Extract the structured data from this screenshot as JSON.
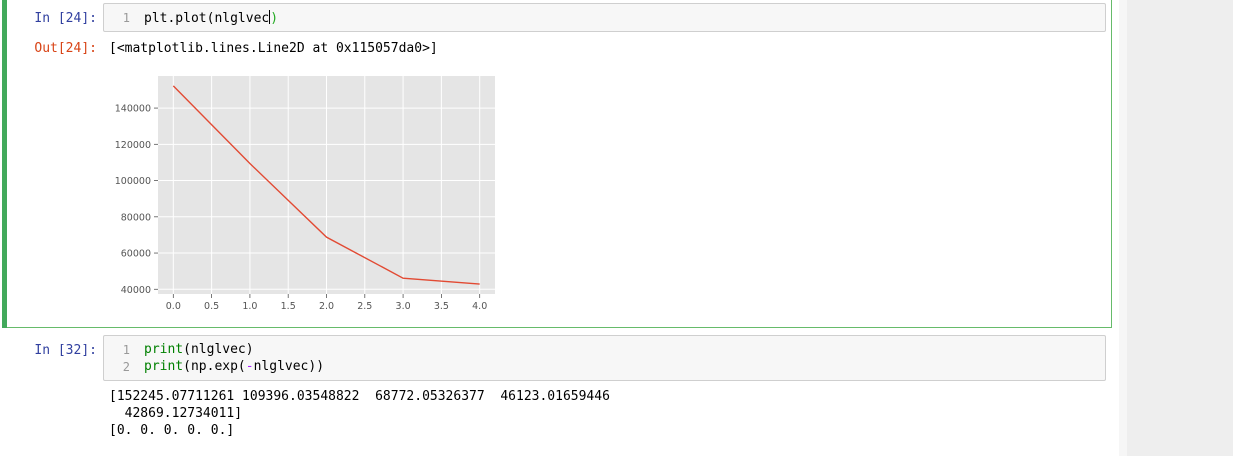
{
  "cells": [
    {
      "in_prompt": "In [24]:",
      "lines": [
        {
          "num": "1",
          "code": "plt.plot(nlglvec"
        }
      ],
      "out_prompt": "Out[24]:",
      "out_text": "[<matplotlib.lines.Line2D at 0x115057da0>]"
    },
    {
      "in_prompt": "In [32]:",
      "lines": [
        {
          "num": "1",
          "code_kw": "print",
          "code_rest": "(nlglvec)"
        },
        {
          "num": "2",
          "code_kw": "print",
          "code_rest": "(np.exp(",
          "code_op": "-",
          "code_tail": "nlglvec))"
        }
      ],
      "stdout": [
        "[152245.07711261 109396.03548822  68772.05326377  46123.01659446",
        "  42869.12734011]",
        "[0. 0. 0. 0. 0.]"
      ]
    }
  ],
  "chart_data": {
    "type": "line",
    "x": [
      0,
      1,
      2,
      3,
      4
    ],
    "series": [
      {
        "values": [
          152245.07711261,
          109396.03548822,
          68772.05326377,
          46123.01659446,
          42869.12734011
        ],
        "color": "#e24a33"
      }
    ],
    "xlim": [
      -0.2,
      4.2
    ],
    "ylim": [
      37400,
      157700
    ],
    "xticks": [
      "0.0",
      "0.5",
      "1.0",
      "1.5",
      "2.0",
      "2.5",
      "3.0",
      "3.5",
      "4.0"
    ],
    "yticks": [
      "40000",
      "60000",
      "80000",
      "100000",
      "120000",
      "140000"
    ],
    "title": "",
    "xlabel": "",
    "ylabel": "",
    "grid": true,
    "style": "ggplot",
    "background": "#e5e5e5"
  }
}
